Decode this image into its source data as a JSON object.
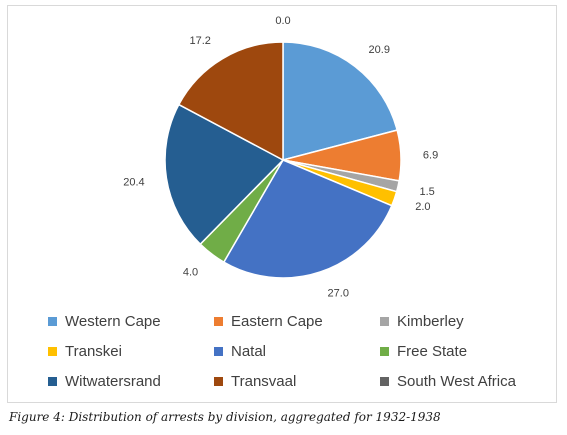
{
  "chart_data": {
    "type": "pie",
    "categories": [
      "Western Cape",
      "Eastern Cape",
      "Kimberley",
      "Transkei",
      "Natal",
      "Free State",
      "Witwatersrand",
      "Transvaal",
      "South West Africa"
    ],
    "values": [
      20.9,
      6.9,
      1.5,
      2.0,
      27.0,
      4.0,
      20.4,
      17.2,
      0.0
    ],
    "data_labels": [
      "20.9",
      "6.9",
      "1.5",
      "2.0",
      "27.0",
      "4.0",
      "20.4",
      "17.2",
      "0.0"
    ],
    "colors": [
      "#5B9BD5",
      "#ED7D31",
      "#A5A5A5",
      "#FFC000",
      "#4472C4",
      "#70AD47",
      "#255E91",
      "#9E480E",
      "#636363"
    ],
    "start_angle": "12 o'clock",
    "direction": "clockwise",
    "legend_position": "bottom",
    "legend": [
      {
        "label": "Western Cape",
        "color": "#5B9BD5"
      },
      {
        "label": "Eastern Cape",
        "color": "#ED7D31"
      },
      {
        "label": "Kimberley",
        "color": "#A5A5A5"
      },
      {
        "label": "Transkei",
        "color": "#FFC000"
      },
      {
        "label": "Natal",
        "color": "#4472C4"
      },
      {
        "label": "Free State",
        "color": "#70AD47"
      },
      {
        "label": "Witwatersrand",
        "color": "#255E91"
      },
      {
        "label": "Transvaal",
        "color": "#9E480E"
      },
      {
        "label": "South West Africa",
        "color": "#636363"
      }
    ]
  },
  "caption": "Figure 4: Distribution of arrests by division, aggregated for 1932-1938"
}
